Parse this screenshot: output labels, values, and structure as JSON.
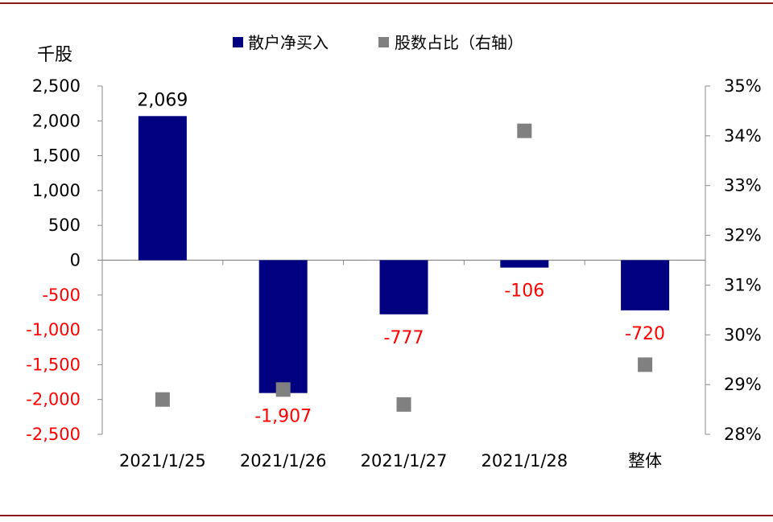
{
  "chart_data": {
    "type": "bar",
    "unit_label": "千股",
    "categories": [
      "2021/1/25",
      "2021/1/26",
      "2021/1/27",
      "2021/1/28",
      "整体"
    ],
    "series": [
      {
        "name": "散户净买入",
        "type": "bar",
        "axis": "left",
        "values": [
          2069,
          -1907,
          -777,
          -106,
          -720
        ],
        "data_labels": [
          "2,069",
          "-1,907",
          "-777",
          "-106",
          "-720"
        ],
        "color": "#000080"
      },
      {
        "name": "股数占比（右轴）",
        "type": "scatter",
        "axis": "right",
        "values": [
          28.7,
          28.9,
          28.6,
          34.1,
          29.4
        ],
        "color": "#808080"
      }
    ],
    "y_left": {
      "range": [
        -2500,
        2500
      ],
      "ticks": [
        2500,
        2000,
        1500,
        1000,
        500,
        0,
        -500,
        -1000,
        -1500,
        -2000,
        -2500
      ],
      "tick_labels": [
        "2,500",
        "2,000",
        "1,500",
        "1,000",
        "500",
        "0",
        "-500",
        "-1,000",
        "-1,500",
        "-2,000",
        "-2,500"
      ],
      "negative_label_color": "#ff0000",
      "positive_label_color": "#000000"
    },
    "y_right": {
      "range": [
        28,
        35
      ],
      "ticks": [
        35,
        34,
        33,
        32,
        31,
        30,
        29,
        28
      ],
      "tick_labels": [
        "35%",
        "34%",
        "33%",
        "32%",
        "31%",
        "30%",
        "29%",
        "28%"
      ]
    },
    "negative_data_label_color": "#ff0000",
    "legend_position": "top",
    "grid": false
  }
}
